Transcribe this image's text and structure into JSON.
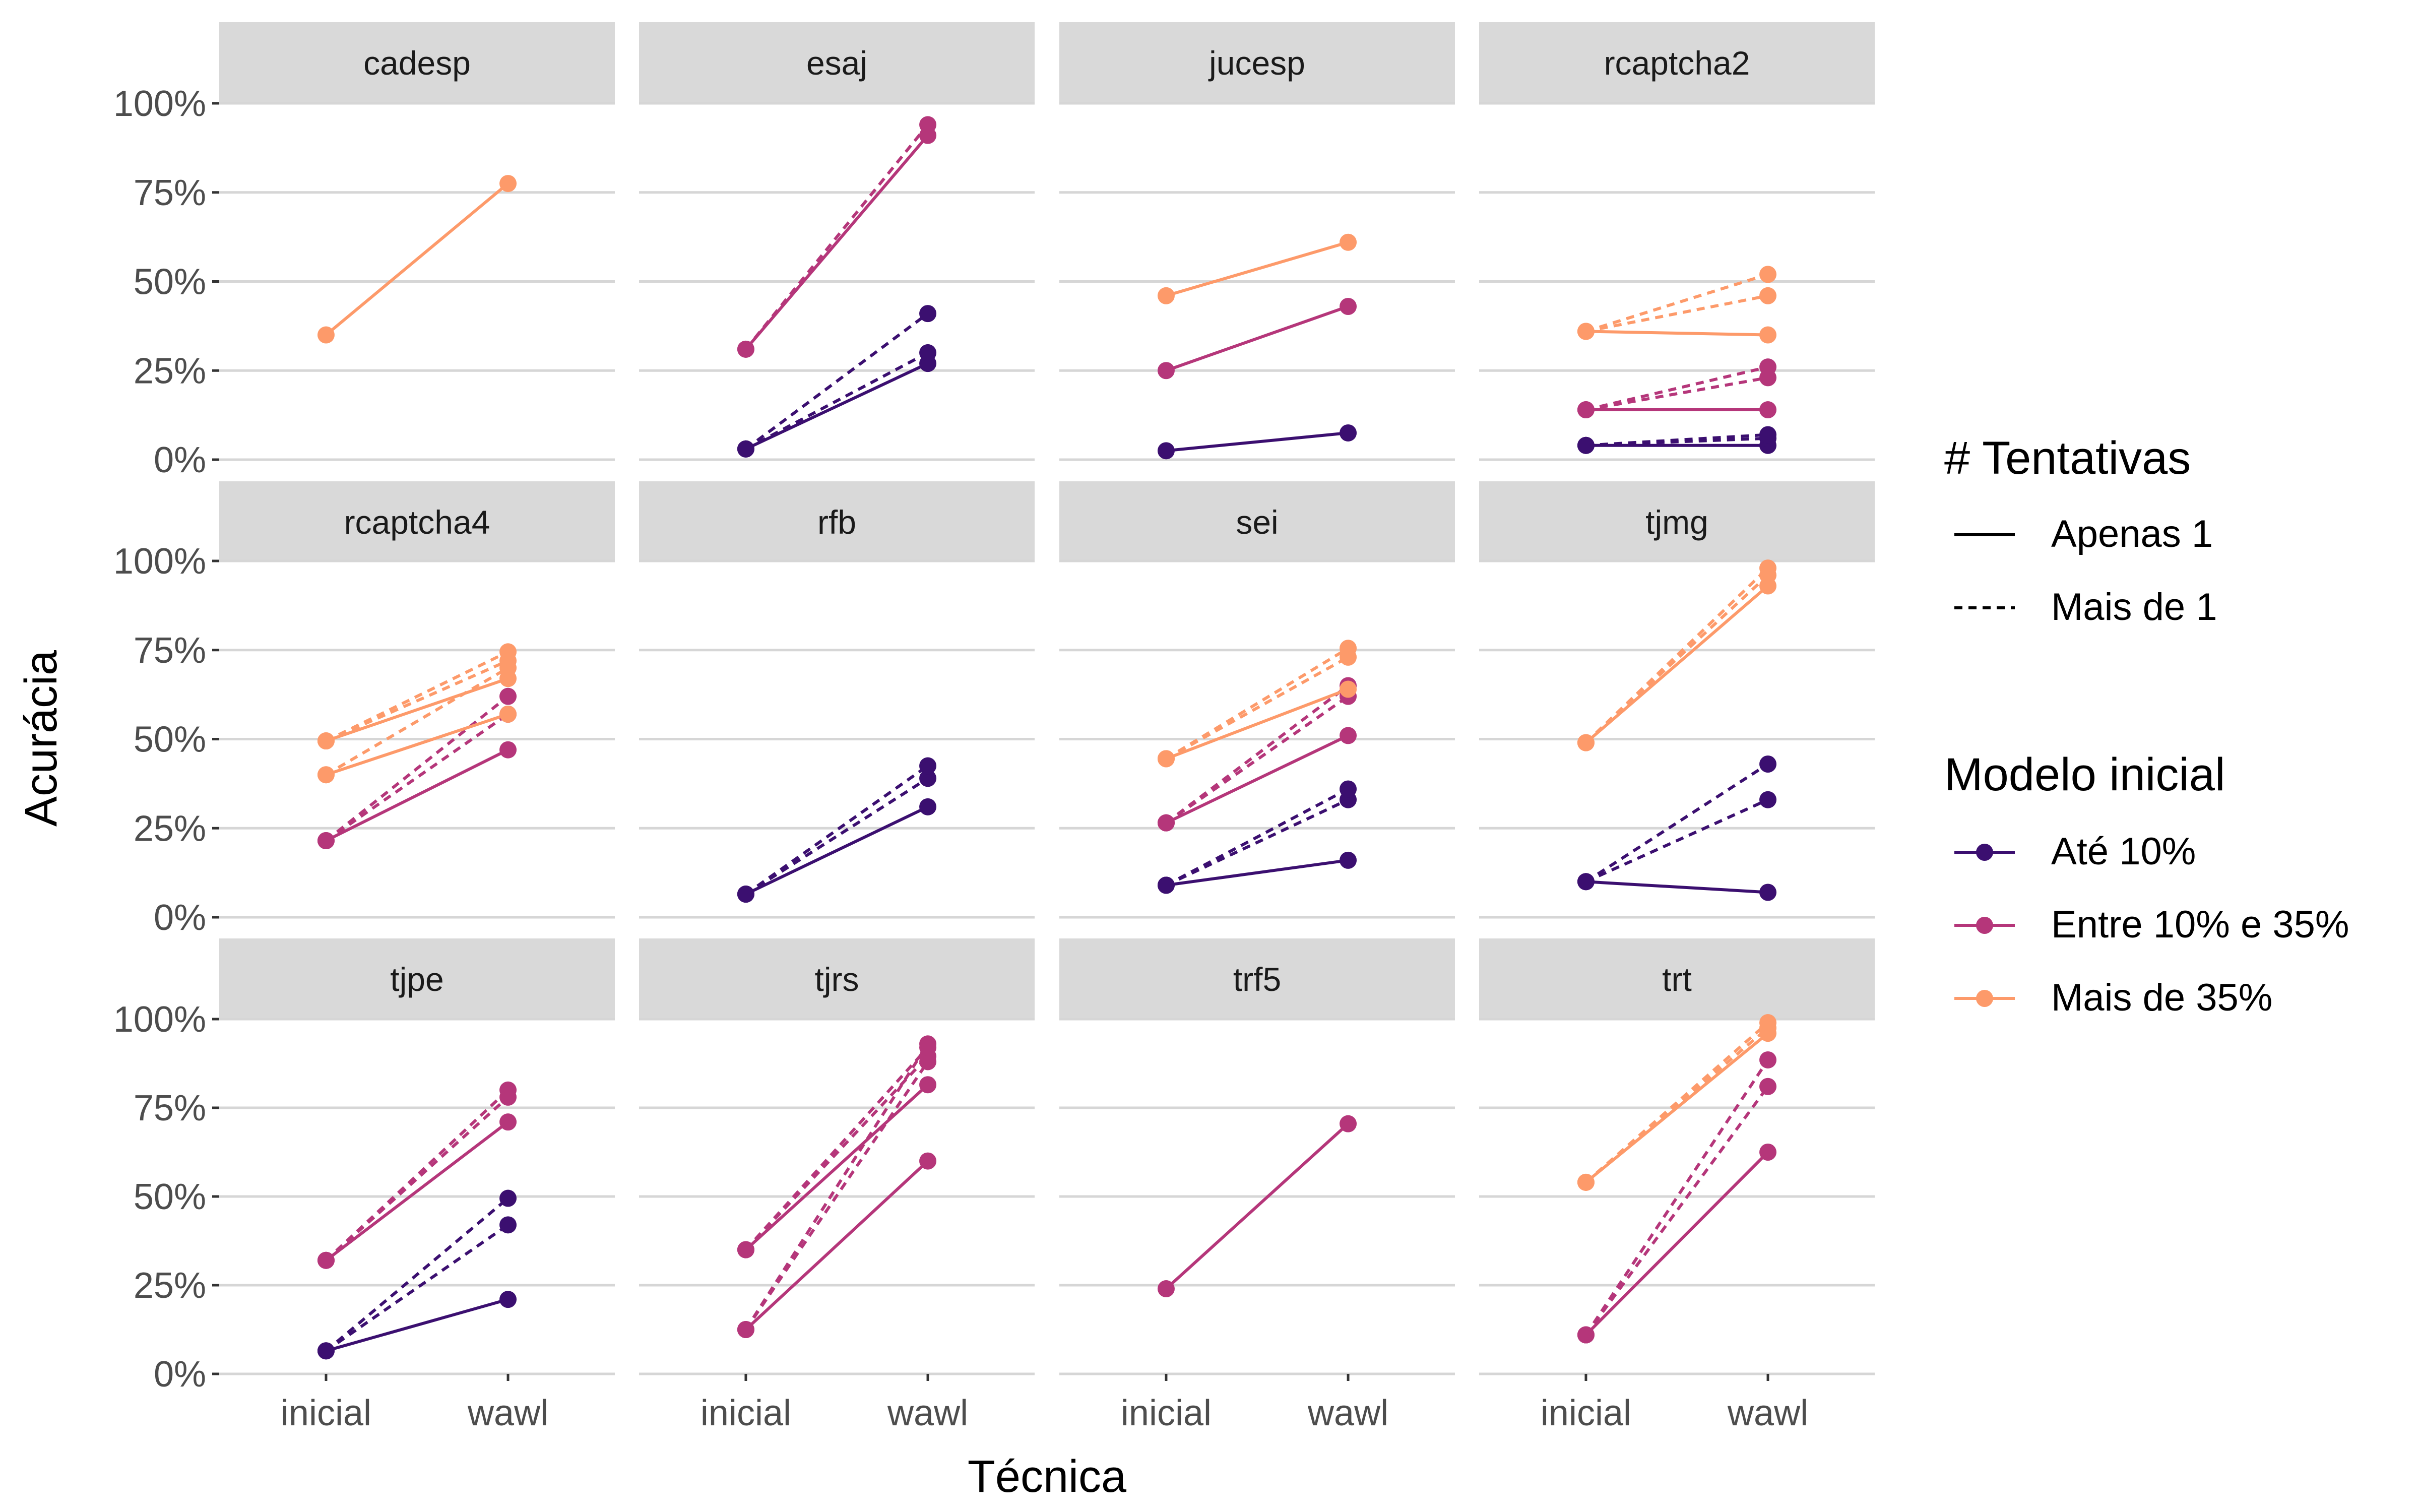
{
  "chart_data": {
    "type": "line",
    "facet_by": "captcha",
    "x_categories": [
      "inicial",
      "wawl"
    ],
    "xlabel": "Técnica",
    "ylabel": "Acurácia",
    "y_tick_labels": [
      "0%",
      "25%",
      "50%",
      "75%",
      "100%"
    ],
    "ylim": [
      0,
      1
    ],
    "grid": "horizontal",
    "legend_position": "right",
    "linetype_legend": {
      "title": "# Tentativas",
      "entries": [
        {
          "key": "1",
          "label": "Apenas 1",
          "dash": "solid"
        },
        {
          "key": "n",
          "label": "Mais de 1",
          "dash": "dashed"
        }
      ]
    },
    "color_legend": {
      "title": "Modelo inicial",
      "entries": [
        {
          "key": "low",
          "label": "Até 10%",
          "color": "#3b0f70"
        },
        {
          "key": "mid",
          "label": "Entre 10% e 35%",
          "color": "#b5367a"
        },
        {
          "key": "high",
          "label": "Mais de 35%",
          "color": "#fd9a6a"
        }
      ]
    },
    "panels": [
      {
        "name": "cadesp",
        "series": [
          {
            "group": "high",
            "tries": "1",
            "values": [
              0.35,
              0.775
            ]
          }
        ]
      },
      {
        "name": "esaj",
        "series": [
          {
            "group": "low",
            "tries": "1",
            "values": [
              0.03,
              0.27
            ]
          },
          {
            "group": "low",
            "tries": "n",
            "values": [
              0.03,
              0.41
            ]
          },
          {
            "group": "low",
            "tries": "n",
            "values": [
              0.03,
              0.3
            ]
          },
          {
            "group": "mid",
            "tries": "1",
            "values": [
              0.31,
              0.91
            ]
          },
          {
            "group": "mid",
            "tries": "n",
            "values": [
              0.31,
              0.94
            ]
          }
        ]
      },
      {
        "name": "jucesp",
        "series": [
          {
            "group": "low",
            "tries": "1",
            "values": [
              0.025,
              0.075
            ]
          },
          {
            "group": "mid",
            "tries": "1",
            "values": [
              0.25,
              0.43
            ]
          },
          {
            "group": "high",
            "tries": "1",
            "values": [
              0.46,
              0.61
            ]
          }
        ]
      },
      {
        "name": "rcaptcha2",
        "series": [
          {
            "group": "low",
            "tries": "1",
            "values": [
              0.04,
              0.04
            ]
          },
          {
            "group": "low",
            "tries": "n",
            "values": [
              0.04,
              0.06
            ]
          },
          {
            "group": "low",
            "tries": "n",
            "values": [
              0.04,
              0.07
            ]
          },
          {
            "group": "mid",
            "tries": "1",
            "values": [
              0.14,
              0.14
            ]
          },
          {
            "group": "mid",
            "tries": "n",
            "values": [
              0.14,
              0.23
            ]
          },
          {
            "group": "mid",
            "tries": "n",
            "values": [
              0.14,
              0.26
            ]
          },
          {
            "group": "high",
            "tries": "1",
            "values": [
              0.36,
              0.35
            ]
          },
          {
            "group": "high",
            "tries": "n",
            "values": [
              0.36,
              0.46
            ]
          },
          {
            "group": "high",
            "tries": "n",
            "values": [
              0.36,
              0.52
            ]
          }
        ]
      },
      {
        "name": "rcaptcha4",
        "series": [
          {
            "group": "mid",
            "tries": "1",
            "values": [
              0.215,
              0.47
            ]
          },
          {
            "group": "mid",
            "tries": "n",
            "values": [
              0.215,
              0.57
            ]
          },
          {
            "group": "mid",
            "tries": "n",
            "values": [
              0.215,
              0.62
            ]
          },
          {
            "group": "high",
            "tries": "1",
            "values": [
              0.4,
              0.57
            ]
          },
          {
            "group": "high",
            "tries": "1",
            "values": [
              0.495,
              0.67
            ]
          },
          {
            "group": "high",
            "tries": "n",
            "values": [
              0.4,
              0.7
            ]
          },
          {
            "group": "high",
            "tries": "n",
            "values": [
              0.495,
              0.72
            ]
          },
          {
            "group": "high",
            "tries": "n",
            "values": [
              0.495,
              0.745
            ]
          }
        ]
      },
      {
        "name": "rfb",
        "series": [
          {
            "group": "low",
            "tries": "1",
            "values": [
              0.065,
              0.31
            ]
          },
          {
            "group": "low",
            "tries": "n",
            "values": [
              0.065,
              0.39
            ]
          },
          {
            "group": "low",
            "tries": "n",
            "values": [
              0.065,
              0.425
            ]
          }
        ]
      },
      {
        "name": "sei",
        "series": [
          {
            "group": "low",
            "tries": "1",
            "values": [
              0.09,
              0.16
            ]
          },
          {
            "group": "low",
            "tries": "n",
            "values": [
              0.09,
              0.33
            ]
          },
          {
            "group": "low",
            "tries": "n",
            "values": [
              0.09,
              0.36
            ]
          },
          {
            "group": "mid",
            "tries": "1",
            "values": [
              0.265,
              0.51
            ]
          },
          {
            "group": "mid",
            "tries": "n",
            "values": [
              0.265,
              0.62
            ]
          },
          {
            "group": "mid",
            "tries": "n",
            "values": [
              0.265,
              0.65
            ]
          },
          {
            "group": "high",
            "tries": "1",
            "values": [
              0.445,
              0.64
            ]
          },
          {
            "group": "high",
            "tries": "n",
            "values": [
              0.445,
              0.73
            ]
          },
          {
            "group": "high",
            "tries": "n",
            "values": [
              0.445,
              0.755
            ]
          }
        ]
      },
      {
        "name": "tjmg",
        "series": [
          {
            "group": "low",
            "tries": "1",
            "values": [
              0.1,
              0.07
            ]
          },
          {
            "group": "low",
            "tries": "n",
            "values": [
              0.1,
              0.33
            ]
          },
          {
            "group": "low",
            "tries": "n",
            "values": [
              0.1,
              0.43
            ]
          },
          {
            "group": "high",
            "tries": "1",
            "values": [
              0.49,
              0.93
            ]
          },
          {
            "group": "high",
            "tries": "n",
            "values": [
              0.49,
              0.96
            ]
          },
          {
            "group": "high",
            "tries": "n",
            "values": [
              0.49,
              0.98
            ]
          }
        ]
      },
      {
        "name": "tjpe",
        "series": [
          {
            "group": "low",
            "tries": "1",
            "values": [
              0.065,
              0.21
            ]
          },
          {
            "group": "low",
            "tries": "n",
            "values": [
              0.065,
              0.42
            ]
          },
          {
            "group": "low",
            "tries": "n",
            "values": [
              0.065,
              0.495
            ]
          },
          {
            "group": "mid",
            "tries": "1",
            "values": [
              0.32,
              0.71
            ]
          },
          {
            "group": "mid",
            "tries": "n",
            "values": [
              0.32,
              0.78
            ]
          },
          {
            "group": "mid",
            "tries": "n",
            "values": [
              0.32,
              0.8
            ]
          }
        ]
      },
      {
        "name": "tjrs",
        "series": [
          {
            "group": "mid",
            "tries": "1",
            "values": [
              0.125,
              0.6
            ]
          },
          {
            "group": "mid",
            "tries": "n",
            "values": [
              0.125,
              0.88
            ]
          },
          {
            "group": "mid",
            "tries": "n",
            "values": [
              0.125,
              0.93
            ]
          },
          {
            "group": "mid",
            "tries": "1",
            "values": [
              0.35,
              0.815
            ]
          },
          {
            "group": "mid",
            "tries": "n",
            "values": [
              0.35,
              0.895
            ]
          },
          {
            "group": "mid",
            "tries": "n",
            "values": [
              0.35,
              0.92
            ]
          }
        ]
      },
      {
        "name": "trf5",
        "series": [
          {
            "group": "mid",
            "tries": "1",
            "values": [
              0.24,
              0.705
            ]
          }
        ]
      },
      {
        "name": "trt",
        "series": [
          {
            "group": "mid",
            "tries": "1",
            "values": [
              0.11,
              0.625
            ]
          },
          {
            "group": "mid",
            "tries": "n",
            "values": [
              0.11,
              0.81
            ]
          },
          {
            "group": "mid",
            "tries": "n",
            "values": [
              0.11,
              0.885
            ]
          },
          {
            "group": "high",
            "tries": "1",
            "values": [
              0.54,
              0.96
            ]
          },
          {
            "group": "high",
            "tries": "n",
            "values": [
              0.54,
              0.975
            ]
          },
          {
            "group": "high",
            "tries": "n",
            "values": [
              0.54,
              0.99
            ]
          }
        ]
      }
    ]
  }
}
